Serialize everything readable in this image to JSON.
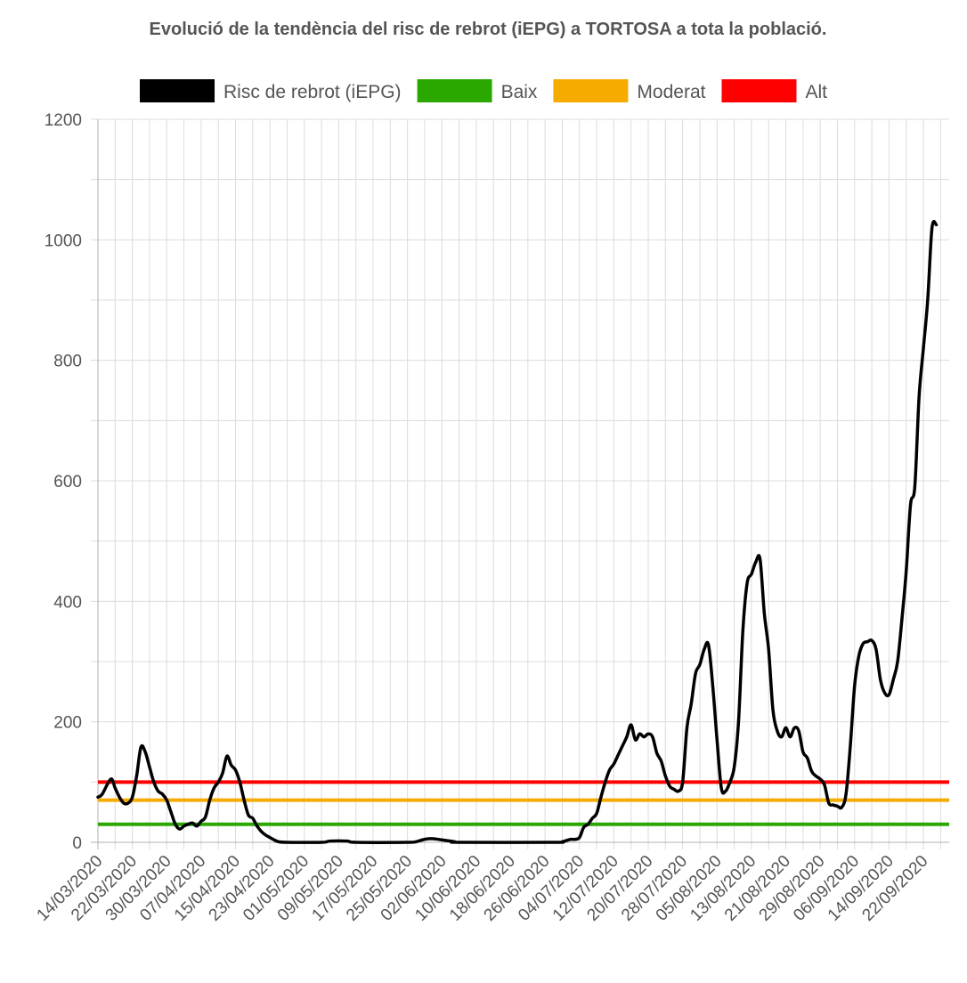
{
  "chart_data": {
    "type": "line",
    "title": "Evolució de la tendència del risc de rebrot (iEPG) a TORTOSA a tota la població.",
    "xlabel": "",
    "ylabel": "",
    "ylim": [
      0,
      1200
    ],
    "yticks": [
      0,
      200,
      400,
      600,
      800,
      1000,
      1200
    ],
    "x_start_date": "2020-03-14",
    "x_end_date": "2020-09-28",
    "xticks": [
      "14/03/2020",
      "22/03/2020",
      "30/03/2020",
      "07/04/2020",
      "15/04/2020",
      "23/04/2020",
      "01/05/2020",
      "09/05/2020",
      "17/05/2020",
      "25/05/2020",
      "02/06/2020",
      "10/06/2020",
      "18/06/2020",
      "26/06/2020",
      "04/07/2020",
      "12/07/2020",
      "20/07/2020",
      "28/07/2020",
      "05/08/2020",
      "13/08/2020",
      "21/08/2020",
      "29/08/2020",
      "06/09/2020",
      "14/09/2020",
      "22/09/2020"
    ],
    "grid": true,
    "legend_position": "top",
    "series": [
      {
        "name": "Risc de rebrot (iEPG)",
        "color": "#000000",
        "points": [
          [
            "2020-03-14",
            75
          ],
          [
            "2020-03-15",
            80
          ],
          [
            "2020-03-17",
            105
          ],
          [
            "2020-03-18",
            90
          ],
          [
            "2020-03-19",
            75
          ],
          [
            "2020-03-20",
            65
          ],
          [
            "2020-03-21",
            65
          ],
          [
            "2020-03-22",
            75
          ],
          [
            "2020-03-23",
            110
          ],
          [
            "2020-03-24",
            158
          ],
          [
            "2020-03-25",
            150
          ],
          [
            "2020-03-26",
            125
          ],
          [
            "2020-03-27",
            100
          ],
          [
            "2020-03-28",
            85
          ],
          [
            "2020-03-29",
            80
          ],
          [
            "2020-03-30",
            70
          ],
          [
            "2020-03-31",
            50
          ],
          [
            "2020-04-01",
            30
          ],
          [
            "2020-04-02",
            22
          ],
          [
            "2020-04-03",
            27
          ],
          [
            "2020-04-04",
            30
          ],
          [
            "2020-04-05",
            32
          ],
          [
            "2020-04-06",
            27
          ],
          [
            "2020-04-07",
            35
          ],
          [
            "2020-04-08",
            42
          ],
          [
            "2020-04-09",
            70
          ],
          [
            "2020-04-10",
            90
          ],
          [
            "2020-04-11",
            100
          ],
          [
            "2020-04-12",
            115
          ],
          [
            "2020-04-13",
            143
          ],
          [
            "2020-04-14",
            128
          ],
          [
            "2020-04-15",
            120
          ],
          [
            "2020-04-16",
            100
          ],
          [
            "2020-04-17",
            70
          ],
          [
            "2020-04-18",
            45
          ],
          [
            "2020-04-19",
            40
          ],
          [
            "2020-04-20",
            27
          ],
          [
            "2020-04-21",
            18
          ],
          [
            "2020-04-22",
            12
          ],
          [
            "2020-04-23",
            8
          ],
          [
            "2020-04-24",
            4
          ],
          [
            "2020-04-25",
            1
          ],
          [
            "2020-04-27",
            0
          ],
          [
            "2020-05-05",
            0
          ],
          [
            "2020-05-07",
            2
          ],
          [
            "2020-05-11",
            2
          ],
          [
            "2020-05-13",
            0
          ],
          [
            "2020-05-25",
            0
          ],
          [
            "2020-05-27",
            1
          ],
          [
            "2020-05-29",
            5
          ],
          [
            "2020-05-31",
            6
          ],
          [
            "2020-06-02",
            4
          ],
          [
            "2020-06-05",
            1
          ],
          [
            "2020-06-06",
            0
          ],
          [
            "2020-06-28",
            0
          ],
          [
            "2020-06-30",
            1
          ],
          [
            "2020-07-01",
            3
          ],
          [
            "2020-07-02",
            5
          ],
          [
            "2020-07-03",
            5
          ],
          [
            "2020-07-04",
            8
          ],
          [
            "2020-07-05",
            25
          ],
          [
            "2020-07-06",
            30
          ],
          [
            "2020-07-07",
            40
          ],
          [
            "2020-07-08",
            48
          ],
          [
            "2020-07-09",
            75
          ],
          [
            "2020-07-10",
            100
          ],
          [
            "2020-07-11",
            120
          ],
          [
            "2020-07-12",
            130
          ],
          [
            "2020-07-13",
            145
          ],
          [
            "2020-07-14",
            160
          ],
          [
            "2020-07-15",
            175
          ],
          [
            "2020-07-16",
            195
          ],
          [
            "2020-07-17",
            170
          ],
          [
            "2020-07-18",
            180
          ],
          [
            "2020-07-19",
            175
          ],
          [
            "2020-07-20",
            180
          ],
          [
            "2020-07-21",
            175
          ],
          [
            "2020-07-22",
            148
          ],
          [
            "2020-07-23",
            135
          ],
          [
            "2020-07-24",
            110
          ],
          [
            "2020-07-25",
            93
          ],
          [
            "2020-07-26",
            88
          ],
          [
            "2020-07-27",
            85
          ],
          [
            "2020-07-28",
            100
          ],
          [
            "2020-07-29",
            190
          ],
          [
            "2020-07-30",
            230
          ],
          [
            "2020-07-31",
            280
          ],
          [
            "2020-08-01",
            295
          ],
          [
            "2020-08-02",
            320
          ],
          [
            "2020-08-03",
            328
          ],
          [
            "2020-08-04",
            260
          ],
          [
            "2020-08-05",
            170
          ],
          [
            "2020-08-06",
            90
          ],
          [
            "2020-08-07",
            85
          ],
          [
            "2020-08-08",
            100
          ],
          [
            "2020-08-09",
            125
          ],
          [
            "2020-08-10",
            200
          ],
          [
            "2020-08-11",
            350
          ],
          [
            "2020-08-12",
            430
          ],
          [
            "2020-08-13",
            445
          ],
          [
            "2020-08-14",
            465
          ],
          [
            "2020-08-15",
            470
          ],
          [
            "2020-08-16",
            380
          ],
          [
            "2020-08-17",
            320
          ],
          [
            "2020-08-18",
            220
          ],
          [
            "2020-08-19",
            185
          ],
          [
            "2020-08-20",
            175
          ],
          [
            "2020-08-21",
            190
          ],
          [
            "2020-08-22",
            175
          ],
          [
            "2020-08-23",
            190
          ],
          [
            "2020-08-24",
            185
          ],
          [
            "2020-08-25",
            150
          ],
          [
            "2020-08-26",
            140
          ],
          [
            "2020-08-27",
            118
          ],
          [
            "2020-08-28",
            110
          ],
          [
            "2020-08-29",
            105
          ],
          [
            "2020-08-30",
            95
          ],
          [
            "2020-08-31",
            65
          ],
          [
            "2020-09-01",
            62
          ],
          [
            "2020-09-02",
            60
          ],
          [
            "2020-09-03",
            58
          ],
          [
            "2020-09-04",
            80
          ],
          [
            "2020-09-05",
            160
          ],
          [
            "2020-09-06",
            260
          ],
          [
            "2020-09-07",
            310
          ],
          [
            "2020-09-08",
            330
          ],
          [
            "2020-09-09",
            333
          ],
          [
            "2020-09-10",
            335
          ],
          [
            "2020-09-11",
            320
          ],
          [
            "2020-09-12",
            270
          ],
          [
            "2020-09-13",
            248
          ],
          [
            "2020-09-14",
            245
          ],
          [
            "2020-09-15",
            270
          ],
          [
            "2020-09-16",
            300
          ],
          [
            "2020-09-17",
            370
          ],
          [
            "2020-09-18",
            450
          ],
          [
            "2020-09-19",
            560
          ],
          [
            "2020-09-20",
            590
          ],
          [
            "2020-09-21",
            740
          ],
          [
            "2020-09-22",
            820
          ],
          [
            "2020-09-23",
            900
          ],
          [
            "2020-09-24",
            1020
          ],
          [
            "2020-09-25",
            1025
          ]
        ]
      },
      {
        "name": "Baix",
        "color": "#2aa800",
        "constant": 30
      },
      {
        "name": "Moderat",
        "color": "#f6ab00",
        "constant": 70
      },
      {
        "name": "Alt",
        "color": "#ff0000",
        "constant": 100
      }
    ]
  }
}
